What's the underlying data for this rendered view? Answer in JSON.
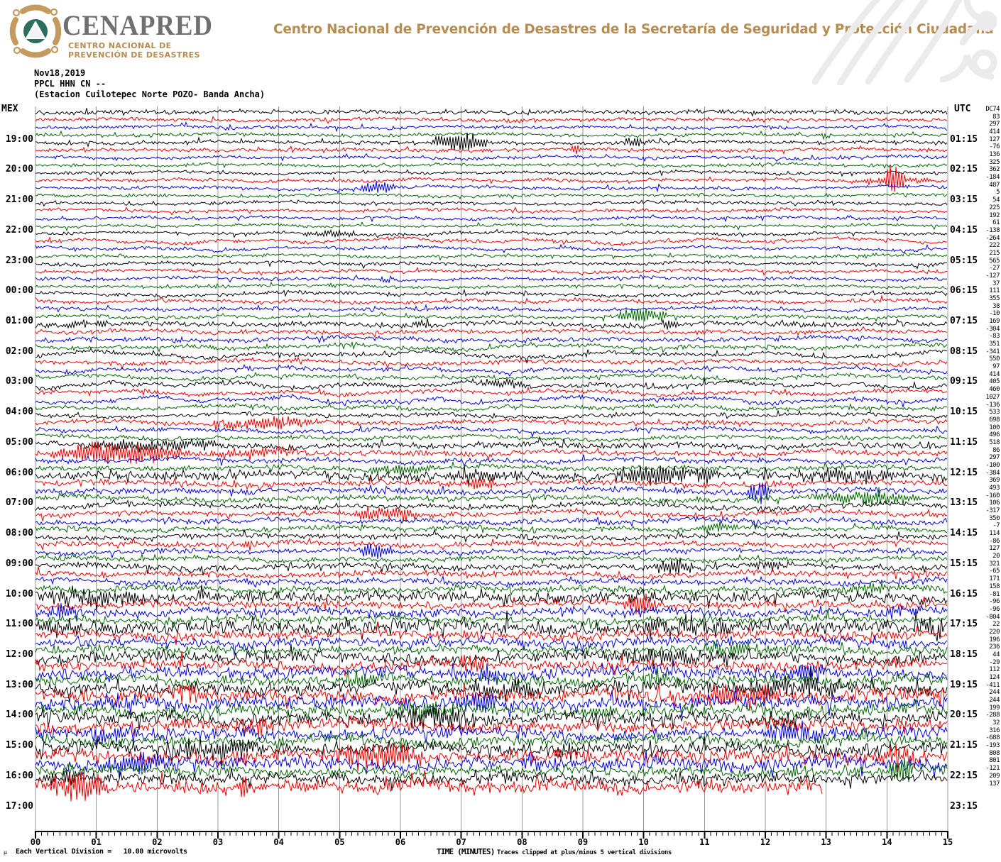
{
  "header": {
    "brand": "CENAPRED",
    "brand_sub1": "CENTRO NACIONAL DE",
    "brand_sub2": "PREVENCIÓN DE DESASTRES",
    "org_line": "Centro Nacional de Prevención de Desastres de la Secretaría de Seguridad y Protección Ciudadana",
    "colors": {
      "brand_gray": "#6f6f6f",
      "gold": "#b68d51",
      "logo_gold": "#c49a5f",
      "logo_teal": "#2a6e5e"
    }
  },
  "station": {
    "date": "Nov18,2019",
    "code": "PPCL HHN CN --",
    "name": "(Estacion Cuilotepec Norte POZO- Banda Ancha)"
  },
  "timezones": {
    "left": "MEX",
    "right": "UTC"
  },
  "footer": {
    "micro_symbol": "μ",
    "scale_note": "Each Vertical Division =   10.00 microvolts",
    "xlabel": "TIME (MINUTES)",
    "clip_note": "Traces clipped at plus/minus 5 vertical divisions"
  },
  "chart_data": {
    "type": "line",
    "subtype": "helicorder-seismogram",
    "title": "PPCL HHN CN -- Estacion Cuilotepec Norte POZO- Banda Ancha, Nov18,2019",
    "xlabel": "TIME (MINUTES)",
    "x_range": [
      0,
      15
    ],
    "x_ticks": [
      "00",
      "01",
      "02",
      "03",
      "04",
      "05",
      "06",
      "07",
      "08",
      "09",
      "10",
      "11",
      "12",
      "13",
      "14",
      "15"
    ],
    "minor_ticks_per_minute": 10,
    "row_minutes": 15,
    "grid": true,
    "grid_color": "#989898",
    "trace_colors_cycle": [
      "#000000",
      "#ee0000",
      "#0000dd",
      "#006600"
    ],
    "dc_header": "DC",
    "left_hour_labels": [
      "19:00",
      "20:00",
      "21:00",
      "22:00",
      "23:00",
      "00:00",
      "01:00",
      "02:00",
      "03:00",
      "04:00",
      "05:00",
      "06:00",
      "07:00",
      "08:00",
      "09:00",
      "10:00",
      "11:00",
      "12:00",
      "13:00",
      "14:00",
      "15:00",
      "16:00",
      "17:00"
    ],
    "right_hour_labels": [
      "01:15",
      "02:15",
      "03:15",
      "04:15",
      "05:15",
      "06:15",
      "07:15",
      "08:15",
      "09:15",
      "10:15",
      "11:15",
      "12:15",
      "13:15",
      "14:15",
      "15:15",
      "16:15",
      "17:15",
      "18:15",
      "19:15",
      "20:15",
      "21:15",
      "22:15",
      "23:15"
    ],
    "traces": [
      {
        "t": "18:00",
        "c": 0,
        "dc": 74,
        "hf": 2.3,
        "lf": 1.2
      },
      {
        "t": "18:15",
        "c": 1,
        "dc": 83,
        "hf": 2.0,
        "lf": 1.4
      },
      {
        "t": "18:30",
        "c": 2,
        "dc": 297,
        "hf": 1.9,
        "lf": 1.6
      },
      {
        "t": "18:45",
        "c": 3,
        "dc": 414,
        "hf": 1.8,
        "lf": 1.4,
        "ev": [
          [
            12.85,
            13.1,
            6
          ]
        ]
      },
      {
        "t": "19:00",
        "c": 0,
        "dc": 127,
        "hf": 1.9,
        "lf": 1.5,
        "ev": [
          [
            6.5,
            7.45,
            13
          ],
          [
            9.6,
            10.15,
            5
          ]
        ]
      },
      {
        "t": "19:15",
        "c": 1,
        "dc": -76,
        "hf": 2.0,
        "lf": 1.6,
        "ev": [
          [
            8.8,
            9.05,
            7
          ]
        ]
      },
      {
        "t": "19:30",
        "c": 2,
        "dc": 136,
        "hf": 1.8,
        "lf": 1.7
      },
      {
        "t": "19:45",
        "c": 3,
        "dc": 325,
        "hf": 1.7,
        "lf": 1.5
      },
      {
        "t": "20:00",
        "c": 0,
        "dc": 362,
        "hf": 1.7,
        "lf": 1.9
      },
      {
        "t": "20:15",
        "c": 1,
        "dc": -184,
        "hf": 1.8,
        "lf": 2.0,
        "ev": [
          [
            13.95,
            14.3,
            20
          ],
          [
            13.4,
            14.9,
            4
          ]
        ]
      },
      {
        "t": "20:30",
        "c": 2,
        "dc": 487,
        "hf": 1.8,
        "lf": 2.4,
        "ev": [
          [
            5.3,
            5.95,
            9
          ]
        ]
      },
      {
        "t": "20:45",
        "c": 3,
        "dc": 5,
        "hf": 1.6,
        "lf": 1.6
      },
      {
        "t": "21:00",
        "c": 0,
        "dc": 54,
        "hf": 1.6,
        "lf": 1.8
      },
      {
        "t": "21:15",
        "c": 1,
        "dc": 225,
        "hf": 1.7,
        "lf": 1.9
      },
      {
        "t": "21:30",
        "c": 2,
        "dc": 192,
        "hf": 1.7,
        "lf": 1.8
      },
      {
        "t": "21:45",
        "c": 3,
        "dc": 61,
        "hf": 1.6,
        "lf": 1.7
      },
      {
        "t": "22:00",
        "c": 0,
        "dc": -138,
        "hf": 1.7,
        "lf": 2.0,
        "ev": [
          [
            4.2,
            5.3,
            4
          ]
        ]
      },
      {
        "t": "22:15",
        "c": 1,
        "dc": -264,
        "hf": 1.8,
        "lf": 3.6
      },
      {
        "t": "22:30",
        "c": 2,
        "dc": 222,
        "hf": 1.8,
        "lf": 2.8
      },
      {
        "t": "22:45",
        "c": 3,
        "dc": 215,
        "hf": 1.7,
        "lf": 1.9
      },
      {
        "t": "23:00",
        "c": 0,
        "dc": 565,
        "hf": 1.8,
        "lf": 2.2
      },
      {
        "t": "23:15",
        "c": 1,
        "dc": -27,
        "hf": 1.8,
        "lf": 2.0
      },
      {
        "t": "23:30",
        "c": 2,
        "dc": -127,
        "hf": 1.8,
        "lf": 2.0,
        "ev": [
          [
            5.6,
            5.95,
            5
          ]
        ]
      },
      {
        "t": "23:45",
        "c": 3,
        "dc": 37,
        "hf": 1.7,
        "lf": 1.9
      },
      {
        "t": "00:00",
        "c": 0,
        "dc": 111,
        "hf": 2.0,
        "lf": 2.8
      },
      {
        "t": "00:15",
        "c": 1,
        "dc": 355,
        "hf": 2.0,
        "lf": 2.2
      },
      {
        "t": "00:30",
        "c": 2,
        "dc": 38,
        "hf": 2.0,
        "lf": 2.2
      },
      {
        "t": "00:45",
        "c": 3,
        "dc": -10,
        "hf": 2.0,
        "lf": 2.2,
        "ev": [
          [
            9.55,
            10.4,
            11
          ]
        ]
      },
      {
        "t": "01:00",
        "c": 0,
        "dc": 169,
        "hf": 2.6,
        "lf": 2.6,
        "ev": [
          [
            0.2,
            1.3,
            5
          ],
          [
            6.2,
            6.5,
            5
          ],
          [
            10.3,
            10.6,
            6
          ]
        ]
      },
      {
        "t": "01:15",
        "c": 1,
        "dc": -304,
        "hf": 2.3,
        "lf": 2.4
      },
      {
        "t": "01:30",
        "c": 2,
        "dc": -83,
        "hf": 2.4,
        "lf": 2.8
      },
      {
        "t": "01:45",
        "c": 3,
        "dc": 351,
        "hf": 2.3,
        "lf": 3.6
      },
      {
        "t": "02:00",
        "c": 0,
        "dc": -341,
        "hf": 2.3,
        "lf": 4.5
      },
      {
        "t": "02:15",
        "c": 1,
        "dc": 550,
        "hf": 2.3,
        "lf": 3.4
      },
      {
        "t": "02:30",
        "c": 2,
        "dc": 97,
        "hf": 2.3,
        "lf": 3.2
      },
      {
        "t": "02:45",
        "c": 3,
        "dc": 414,
        "hf": 2.2,
        "lf": 3.4
      },
      {
        "t": "03:00",
        "c": 0,
        "dc": 405,
        "hf": 2.3,
        "lf": 4.0,
        "ev": [
          [
            7.0,
            8.2,
            5
          ]
        ]
      },
      {
        "t": "03:15",
        "c": 1,
        "dc": 460,
        "hf": 2.3,
        "lf": 3.4
      },
      {
        "t": "03:30",
        "c": 2,
        "dc": 1027,
        "hf": 2.4,
        "lf": 4.6
      },
      {
        "t": "03:45",
        "c": 3,
        "dc": -136,
        "hf": 2.2,
        "lf": 3.2
      },
      {
        "t": "04:00",
        "c": 0,
        "dc": 533,
        "hf": 2.2,
        "lf": 3.0
      },
      {
        "t": "04:15",
        "c": 1,
        "dc": 698,
        "hf": 2.6,
        "lf": 3.0,
        "ev": [
          [
            2.8,
            4.7,
            8
          ]
        ]
      },
      {
        "t": "04:30",
        "c": 2,
        "dc": 100,
        "hf": 2.3,
        "lf": 3.4
      },
      {
        "t": "04:45",
        "c": 3,
        "dc": 496,
        "hf": 2.2,
        "lf": 3.0
      },
      {
        "t": "05:00",
        "c": 0,
        "dc": 518,
        "hf": 3.2,
        "lf": 2.6,
        "ev": [
          [
            0.8,
            3.2,
            7
          ]
        ]
      },
      {
        "t": "05:15",
        "c": 1,
        "dc": 86,
        "hf": 2.8,
        "lf": 2.4,
        "ev": [
          [
            0.15,
            2.6,
            15
          ],
          [
            2.6,
            4.6,
            5
          ]
        ]
      },
      {
        "t": "05:30",
        "c": 2,
        "dc": 297,
        "hf": 2.6,
        "lf": 2.8
      },
      {
        "t": "05:45",
        "c": 3,
        "dc": -100,
        "hf": 2.8,
        "lf": 3.0,
        "ev": [
          [
            5.4,
            6.6,
            6
          ]
        ]
      },
      {
        "t": "06:00",
        "c": 0,
        "dc": -384,
        "hf": 4.8,
        "lf": 2.6,
        "ev": [
          [
            6.6,
            8.3,
            7
          ],
          [
            9.4,
            11.3,
            12
          ],
          [
            12.5,
            14.3,
            8
          ]
        ]
      },
      {
        "t": "06:15",
        "c": 1,
        "dc": 369,
        "hf": 3.0,
        "lf": 2.6,
        "ev": [
          [
            7.0,
            7.6,
            8
          ]
        ]
      },
      {
        "t": "06:30",
        "c": 2,
        "dc": 493,
        "hf": 3.0,
        "lf": 3.0,
        "ev": [
          [
            11.7,
            12.1,
            16
          ]
        ]
      },
      {
        "t": "06:45",
        "c": 3,
        "dc": -160,
        "hf": 3.0,
        "lf": 3.0,
        "ev": [
          [
            12.8,
            14.6,
            9
          ]
        ]
      },
      {
        "t": "07:00",
        "c": 0,
        "dc": 106,
        "hf": 2.9,
        "lf": 4.0
      },
      {
        "t": "07:15",
        "c": 1,
        "dc": -317,
        "hf": 2.9,
        "lf": 3.4,
        "ev": [
          [
            5.2,
            6.35,
            10
          ]
        ]
      },
      {
        "t": "07:30",
        "c": 2,
        "dc": 350,
        "hf": 2.8,
        "lf": 3.2
      },
      {
        "t": "07:45",
        "c": 3,
        "dc": -7,
        "hf": 2.7,
        "lf": 3.0,
        "ev": [
          [
            10.9,
            11.6,
            7
          ]
        ]
      },
      {
        "t": "08:00",
        "c": 0,
        "dc": 114,
        "hf": 2.7,
        "lf": 2.6
      },
      {
        "t": "08:15",
        "c": 1,
        "dc": -86,
        "hf": 2.7,
        "lf": 2.6,
        "ev": [
          [
            3.4,
            3.6,
            8
          ]
        ]
      },
      {
        "t": "08:30",
        "c": 2,
        "dc": 127,
        "hf": 2.7,
        "lf": 2.6,
        "ev": [
          [
            5.3,
            5.9,
            13
          ]
        ]
      },
      {
        "t": "08:45",
        "c": 3,
        "dc": 20,
        "hf": 2.6,
        "lf": 2.6
      },
      {
        "t": "09:00",
        "c": 0,
        "dc": 321,
        "hf": 3.3,
        "lf": 3.0,
        "ev": [
          [
            10.15,
            10.9,
            11
          ],
          [
            11.7,
            12.4,
            7
          ]
        ]
      },
      {
        "t": "09:15",
        "c": 1,
        "dc": -65,
        "hf": 3.2,
        "lf": 3.0
      },
      {
        "t": "09:30",
        "c": 2,
        "dc": 171,
        "hf": 3.2,
        "lf": 3.2
      },
      {
        "t": "09:45",
        "c": 3,
        "dc": 158,
        "hf": 3.8,
        "lf": 3.0,
        "ev": [
          [
            13.3,
            14.1,
            8
          ]
        ]
      },
      {
        "t": "10:00",
        "c": 0,
        "dc": -81,
        "hf": 6.0,
        "lf": 3.0,
        "ev": [
          [
            0.0,
            1.9,
            11
          ],
          [
            9.6,
            10.3,
            8
          ]
        ]
      },
      {
        "t": "10:15",
        "c": 1,
        "dc": -96,
        "hf": 4.0,
        "lf": 3.0,
        "ev": [
          [
            9.65,
            10.2,
            13
          ]
        ]
      },
      {
        "t": "10:30",
        "c": 2,
        "dc": -96,
        "hf": 4.4,
        "lf": 3.4,
        "ev": [
          [
            0.2,
            0.7,
            11
          ],
          [
            13.9,
            14.6,
            8
          ]
        ]
      },
      {
        "t": "10:45",
        "c": 3,
        "dc": -804,
        "hf": 4.0,
        "lf": 3.0
      },
      {
        "t": "11:00",
        "c": 0,
        "dc": 22,
        "hf": 7.5,
        "lf": 3.0,
        "ev": [
          [
            9.9,
            11.7,
            12
          ],
          [
            14.5,
            15.0,
            14
          ],
          [
            0.0,
            0.9,
            8
          ]
        ]
      },
      {
        "t": "11:15",
        "c": 1,
        "dc": 220,
        "hf": 5.0,
        "lf": 3.0
      },
      {
        "t": "11:30",
        "c": 2,
        "dc": 196,
        "hf": 5.0,
        "lf": 3.4
      },
      {
        "t": "11:45",
        "c": 3,
        "dc": 236,
        "hf": 4.5,
        "lf": 3.0,
        "ev": [
          [
            11.0,
            12.3,
            9
          ]
        ]
      },
      {
        "t": "12:00",
        "c": 0,
        "dc": 44,
        "hf": 6.0,
        "lf": 3.8,
        "ev": [
          [
            9.3,
            11.5,
            9
          ]
        ]
      },
      {
        "t": "12:15",
        "c": 1,
        "dc": -29,
        "hf": 5.5,
        "lf": 3.4,
        "ev": [
          [
            6.9,
            7.5,
            10
          ]
        ]
      },
      {
        "t": "12:30",
        "c": 2,
        "dc": 112,
        "hf": 6.0,
        "lf": 3.8,
        "ev": [
          [
            7.2,
            7.8,
            12
          ],
          [
            12.2,
            13.1,
            10
          ]
        ]
      },
      {
        "t": "12:45",
        "c": 3,
        "dc": 124,
        "hf": 5.5,
        "lf": 3.4,
        "ev": [
          [
            4.9,
            5.7,
            11
          ],
          [
            9.9,
            10.6,
            9
          ]
        ]
      },
      {
        "t": "13:00",
        "c": 0,
        "dc": -411,
        "hf": 6.8,
        "lf": 4.0,
        "ev": [
          [
            11.3,
            13.6,
            11
          ],
          [
            6.9,
            8.6,
            9
          ]
        ]
      },
      {
        "t": "13:15",
        "c": 1,
        "dc": 244,
        "hf": 6.8,
        "lf": 4.0,
        "ev": [
          [
            10.8,
            12.5,
            13
          ],
          [
            2.1,
            2.7,
            9
          ]
        ]
      },
      {
        "t": "13:30",
        "c": 2,
        "dc": 244,
        "hf": 6.8,
        "lf": 4.0,
        "ev": [
          [
            6.7,
            7.7,
            12
          ],
          [
            0.9,
            1.8,
            10
          ]
        ]
      },
      {
        "t": "13:45",
        "c": 3,
        "dc": 199,
        "hf": 6.0,
        "lf": 4.0,
        "ev": [
          [
            5.7,
            6.9,
            11
          ]
        ]
      },
      {
        "t": "14:00",
        "c": 0,
        "dc": -288,
        "hf": 6.8,
        "lf": 4.0,
        "ev": [
          [
            5.8,
            7.3,
            13
          ],
          [
            11.8,
            12.9,
            9
          ]
        ]
      },
      {
        "t": "14:15",
        "c": 1,
        "dc": 32,
        "hf": 6.0,
        "lf": 4.0,
        "ev": [
          [
            3.2,
            4.1,
            9
          ]
        ]
      },
      {
        "t": "14:30",
        "c": 2,
        "dc": 316,
        "hf": 6.4,
        "lf": 4.0,
        "ev": [
          [
            0.9,
            1.7,
            11
          ],
          [
            11.9,
            13.3,
            10
          ]
        ]
      },
      {
        "t": "14:45",
        "c": 3,
        "dc": -688,
        "hf": 5.5,
        "lf": 4.0
      },
      {
        "t": "15:00",
        "c": 0,
        "dc": -193,
        "hf": 6.8,
        "lf": 3.6,
        "ev": [
          [
            2.2,
            3.9,
            12
          ],
          [
            8.3,
            9.2,
            8
          ]
        ]
      },
      {
        "t": "15:15",
        "c": 1,
        "dc": 808,
        "hf": 6.8,
        "lf": 4.0,
        "ev": [
          [
            4.8,
            6.4,
            14
          ],
          [
            13.8,
            14.8,
            10
          ]
        ]
      },
      {
        "t": "15:30",
        "c": 2,
        "dc": 801,
        "hf": 6.8,
        "lf": 4.0,
        "ev": [
          [
            0.9,
            2.3,
            13
          ],
          [
            7.8,
            8.7,
            8
          ]
        ]
      },
      {
        "t": "15:45",
        "c": 3,
        "dc": -121,
        "hf": 5.0,
        "lf": 3.6,
        "ev": [
          [
            12.3,
            12.7,
            8
          ],
          [
            14.0,
            14.45,
            22
          ]
        ]
      },
      {
        "t": "16:00",
        "c": 0,
        "dc": 209,
        "hf": 6.0,
        "lf": 3.0,
        "ev": [
          [
            0.05,
            0.7,
            9
          ],
          [
            7.3,
            8.0,
            5
          ]
        ]
      },
      {
        "t": "16:15",
        "c": 1,
        "dc": 137,
        "hf": 7.0,
        "lf": 3.4,
        "ev": [
          [
            0.1,
            1.3,
            18
          ],
          [
            3.3,
            3.5,
            16
          ],
          [
            11.0,
            11.4,
            6
          ]
        ],
        "end": 12.95
      }
    ]
  }
}
